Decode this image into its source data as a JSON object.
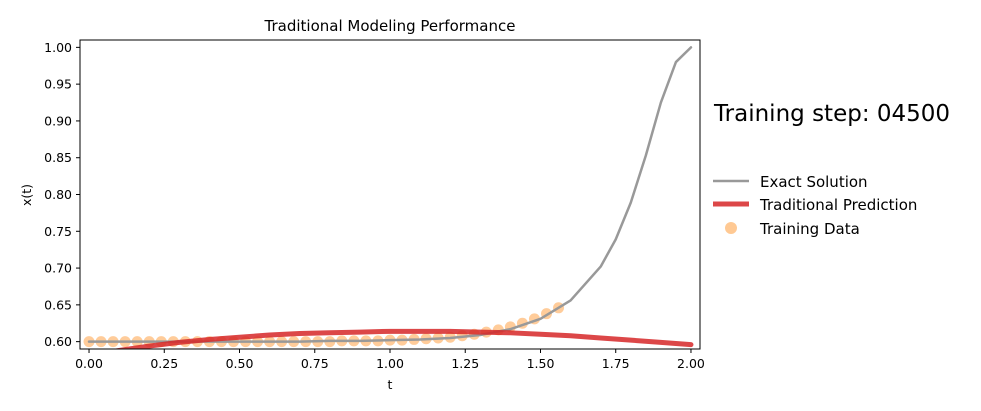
{
  "figure": {
    "step_label": "Training step: 04500"
  },
  "chart_data": {
    "type": "line",
    "title": "Traditional Modeling Performance",
    "xlabel": "t",
    "ylabel": "x(t)",
    "xlim": [
      -0.03,
      2.03
    ],
    "ylim": [
      0.59,
      1.01
    ],
    "xticks": [
      "0.00",
      "0.25",
      "0.50",
      "0.75",
      "1.00",
      "1.25",
      "1.50",
      "1.75",
      "2.00"
    ],
    "yticks": [
      "0.60",
      "0.65",
      "0.70",
      "0.75",
      "0.80",
      "0.85",
      "0.90",
      "0.95",
      "1.00"
    ],
    "grid": false,
    "legend_position": "right, outside plot",
    "series": [
      {
        "name": "Exact Solution",
        "kind": "line",
        "color": "#999999",
        "x": [
          0.0,
          0.1,
          0.2,
          0.3,
          0.4,
          0.5,
          0.6,
          0.7,
          0.8,
          0.9,
          1.0,
          1.1,
          1.2,
          1.3,
          1.4,
          1.5,
          1.6,
          1.7,
          1.75,
          1.8,
          1.85,
          1.9,
          1.95,
          2.0
        ],
        "y": [
          0.6,
          0.6,
          0.6,
          0.6,
          0.6,
          0.6,
          0.6,
          0.6,
          0.601,
          0.601,
          0.602,
          0.603,
          0.605,
          0.609,
          0.617,
          0.631,
          0.656,
          0.702,
          0.739,
          0.789,
          0.853,
          0.925,
          0.98,
          1.0
        ]
      },
      {
        "name": "Traditional Prediction",
        "kind": "line",
        "color": "#d62728",
        "x": [
          0.0,
          0.1,
          0.2,
          0.3,
          0.4,
          0.5,
          0.6,
          0.7,
          0.8,
          0.9,
          1.0,
          1.1,
          1.2,
          1.3,
          1.4,
          1.5,
          1.6,
          1.7,
          1.8,
          1.9,
          2.0
        ],
        "y": [
          0.581,
          0.588,
          0.594,
          0.599,
          0.603,
          0.606,
          0.609,
          0.611,
          0.612,
          0.613,
          0.614,
          0.614,
          0.614,
          0.613,
          0.612,
          0.61,
          0.608,
          0.605,
          0.602,
          0.599,
          0.596
        ]
      },
      {
        "name": "Training Data",
        "kind": "scatter",
        "color": "#ffbb78",
        "x": [
          0.0,
          0.04,
          0.08,
          0.12,
          0.16,
          0.2,
          0.24,
          0.28,
          0.32,
          0.36,
          0.4,
          0.44,
          0.48,
          0.52,
          0.56,
          0.6,
          0.64,
          0.68,
          0.72,
          0.76,
          0.8,
          0.84,
          0.88,
          0.92,
          0.96,
          1.0,
          1.04,
          1.08,
          1.12,
          1.16,
          1.2,
          1.24,
          1.28,
          1.32,
          1.36,
          1.4,
          1.44,
          1.48,
          1.52,
          1.56
        ],
        "y": [
          0.6,
          0.6,
          0.6,
          0.6,
          0.6,
          0.6,
          0.6,
          0.6,
          0.6,
          0.6,
          0.6,
          0.6,
          0.6,
          0.6,
          0.6,
          0.6,
          0.6,
          0.6,
          0.6,
          0.6,
          0.6,
          0.601,
          0.601,
          0.601,
          0.601,
          0.602,
          0.602,
          0.603,
          0.604,
          0.605,
          0.606,
          0.608,
          0.61,
          0.613,
          0.616,
          0.62,
          0.625,
          0.631,
          0.638,
          0.646
        ]
      }
    ]
  }
}
